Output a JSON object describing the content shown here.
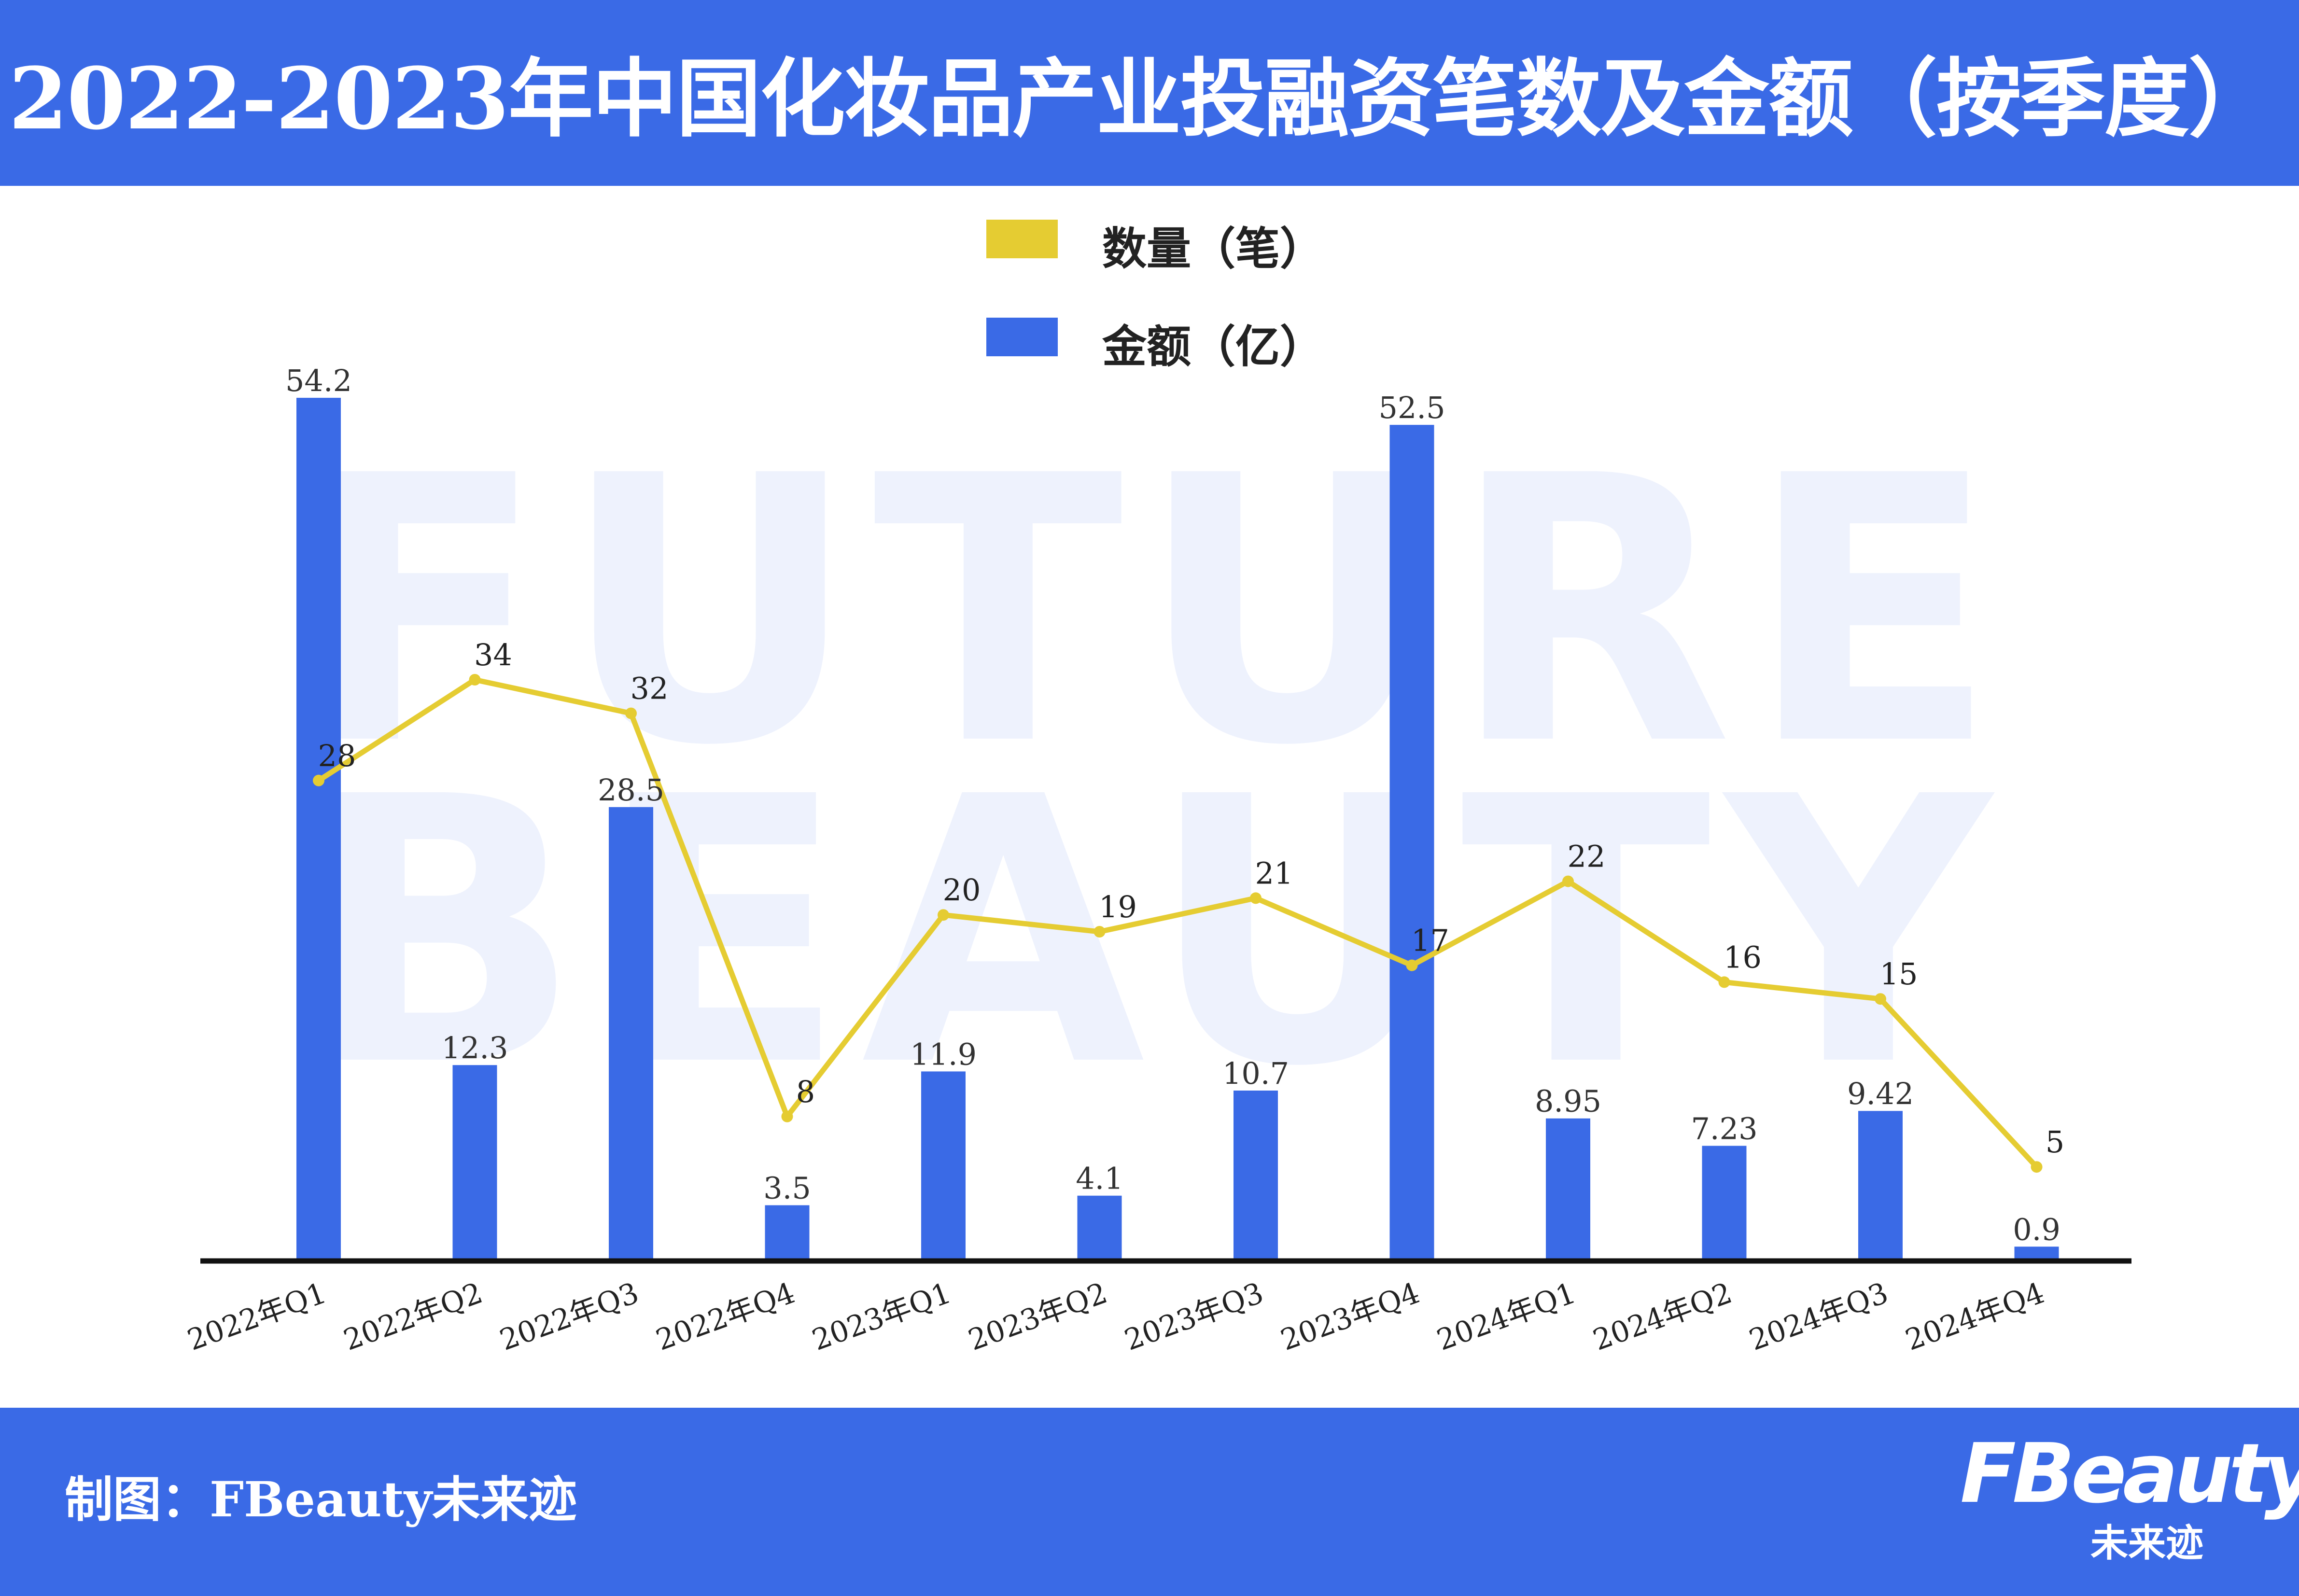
{
  "title": "2022-2023年中国化妆品产业投融资笔数及金额（按季度）",
  "footer": {
    "credit": "制图：FBeauty未来迹",
    "logo_text": "FBeauty",
    "logo_subtext": "未来迹"
  },
  "watermark": {
    "line1": "FUTURE",
    "line2": "BEAUTY"
  },
  "colors": {
    "header_bg": "#3a6ae6",
    "bar": "#3a6ae6",
    "line": "#e5cc32",
    "axis": "#111111"
  },
  "chart_data": {
    "type": "bar",
    "title": "2022-2023年中国化妆品产业投融资笔数及金额（按季度）",
    "categories": [
      "2022年Q1",
      "2022年Q2",
      "2022年Q3",
      "2022年Q4",
      "2023年Q1",
      "2023年Q2",
      "2023年Q3",
      "2023年Q4",
      "2024年Q1",
      "2024年Q2",
      "2024年Q3",
      "2024年Q4"
    ],
    "series": [
      {
        "name": "金额（亿）",
        "type": "bar",
        "color": "#3a6ae6",
        "values": [
          54.2,
          12.3,
          28.5,
          3.5,
          11.9,
          4.1,
          10.7,
          52.5,
          8.95,
          7.23,
          9.42,
          0.9
        ],
        "labels": [
          "54.2",
          "12.3",
          "28.5",
          "3.5",
          "11.9",
          "4.1",
          "10.7",
          "52.5",
          "8.95",
          "7.23",
          "9.42",
          "0.9"
        ]
      },
      {
        "name": "数量（笔）",
        "type": "line",
        "color": "#e5cc32",
        "values": [
          28,
          34,
          32,
          8,
          20,
          19,
          21,
          17,
          22,
          16,
          15,
          5
        ],
        "labels": [
          "28",
          "34",
          "32",
          "8",
          "20",
          "19",
          "21",
          "17",
          "22",
          "16",
          "15",
          "5"
        ]
      }
    ],
    "legend": {
      "position": "top-center"
    },
    "grid": false
  }
}
